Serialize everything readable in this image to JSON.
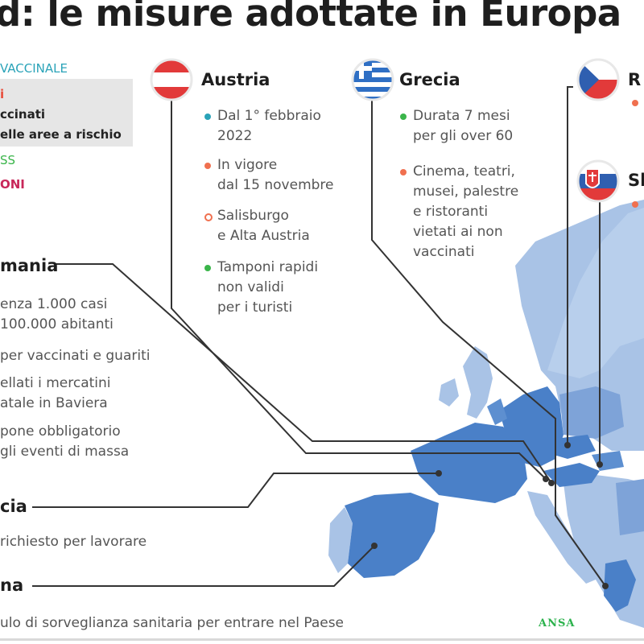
{
  "title": "d: le misure adottate in Europa",
  "legend": {
    "vaccinale": "VACCINALE",
    "red_i": "i",
    "vaccinati": "ccinati",
    "aree": "elle aree a rischio",
    "ss": "SS",
    "oni": "ONI"
  },
  "austria": {
    "name": "Austria",
    "items": [
      {
        "text": "Dal 1° febbraio\n2022",
        "color": "#2aa3b8"
      },
      {
        "text": "In vigore\ndal 15 novembre",
        "color": "#f0704f"
      },
      {
        "text": "Salisburgo\ne Alta Austria",
        "color": "#f0704f"
      },
      {
        "text": "Tamponi rapidi\nnon validi\nper i turisti",
        "color": "#3ab54a"
      }
    ]
  },
  "grecia": {
    "name": "Grecia",
    "items": [
      {
        "text": "Durata 7 mesi\nper gli over 60",
        "color": "#3ab54a"
      },
      {
        "text": "Cinema, teatri,\nmusei,  palestre\ne ristoranti\nvietati ai non\nvaccinati",
        "color": "#f0704f"
      }
    ]
  },
  "rep_ceca": {
    "name": "R"
  },
  "slovacchia": {
    "name": "Sl"
  },
  "germania": {
    "name": "mania",
    "items": [
      "enza 1.000 casi\n100.000 abitanti",
      "per vaccinati e guariti",
      "ellati i mercatini\natale in Baviera",
      "pone obbligatorio\ngli eventi di massa"
    ]
  },
  "francia": {
    "name": "cia",
    "text": "richiesto per lavorare"
  },
  "spagna": {
    "name": "na",
    "text": "ulo di sorveglianza sanitaria per entrare nel Paese"
  },
  "source": "ANSA",
  "colors": {
    "map_dark": "#4a80c8",
    "map_light": "#a9c3e6",
    "map_mid": "#7ea3d8",
    "line": "#333333"
  }
}
